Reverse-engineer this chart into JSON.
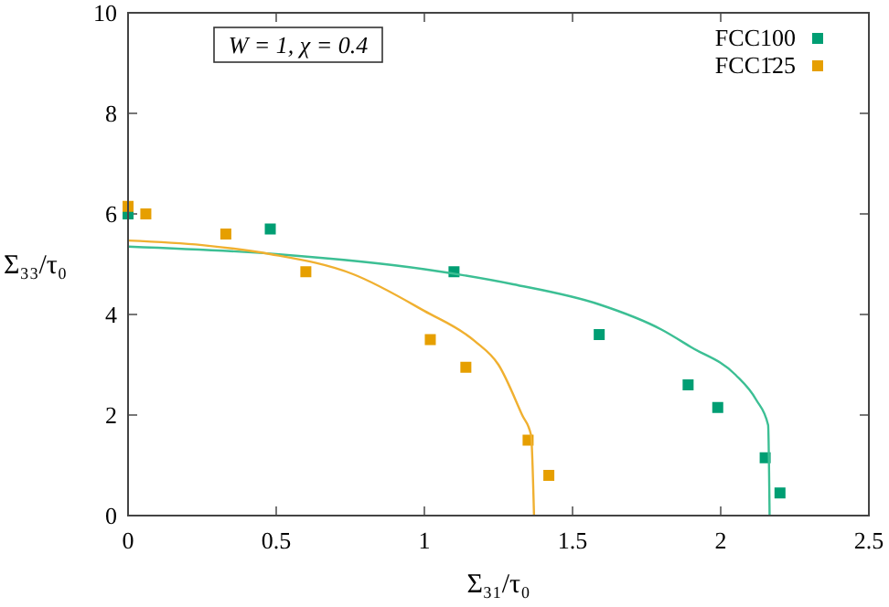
{
  "chart_data": {
    "type": "scatter",
    "xlabel": "Σ₃₁/τ₀",
    "ylabel": "Σ₃₃/τ₀",
    "annotations": [
      "W = 1, χ = 0.4"
    ],
    "xlim": [
      0,
      2.5
    ],
    "ylim": [
      0,
      10
    ],
    "xticks": [
      0,
      0.5,
      1,
      1.5,
      2,
      2.5
    ],
    "yticks": [
      0,
      2,
      4,
      6,
      8,
      10
    ],
    "grid": false,
    "legend": "top right",
    "marker": "square",
    "series": [
      {
        "name": "FCC100",
        "color": "#009e73",
        "x": [
          0,
          0.48,
          1.1,
          1.59,
          1.89,
          1.99,
          2.15,
          2.2
        ],
        "values": [
          6.0,
          5.7,
          4.85,
          3.6,
          2.6,
          2.15,
          1.15,
          0.45
        ]
      },
      {
        "name": "FCC1̄25",
        "color": "#e69f00",
        "x": [
          0,
          0.06,
          0.33,
          0.6,
          1.02,
          1.14,
          1.35,
          1.42
        ],
        "values": [
          6.15,
          6.0,
          5.6,
          4.85,
          3.5,
          2.95,
          1.5,
          0.8
        ]
      },
      {
        "type": "line",
        "marker": "none",
        "color": "#3cbf94",
        "line_style": "solid",
        "x": [
          0,
          0.5,
          1.0,
          1.3,
          1.59,
          1.8,
          1.9,
          2.05,
          2.12,
          2.16,
          2.165
        ],
        "values": [
          5.35,
          5.2,
          4.9,
          4.6,
          4.2,
          3.7,
          3.35,
          2.8,
          2.3,
          1.8,
          0
        ]
      },
      {
        "type": "line",
        "marker": "none",
        "color": "#f0b030",
        "line_style": "solid",
        "x": [
          0,
          0.25,
          0.48,
          0.76,
          1.0,
          1.17,
          1.25,
          1.33,
          1.36,
          1.37
        ],
        "values": [
          5.47,
          5.38,
          5.2,
          4.8,
          4.07,
          3.47,
          3.0,
          2.0,
          1.6,
          0
        ]
      }
    ]
  }
}
